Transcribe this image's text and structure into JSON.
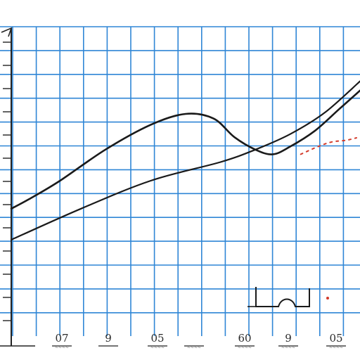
{
  "chart_data": {
    "type": "line",
    "title": "",
    "xlabel": "",
    "ylabel": "",
    "grid": true,
    "x_tick_labels": [
      {
        "label": "07",
        "sub": "~~~~"
      },
      {
        "label": "9",
        "sub": ""
      },
      {
        "label": "05",
        "sub": "~~~~"
      },
      {
        "label": "",
        "sub": "~~~~"
      },
      {
        "label": "60",
        "sub": "~~~~"
      },
      {
        "label": "9",
        "sub": "~~~~"
      },
      {
        "label": "05",
        "sub": "~~~~"
      }
    ],
    "series": [
      {
        "values": [
          [
            0,
            0.41
          ],
          [
            0.05,
            0.44
          ],
          [
            0.14,
            0.5
          ],
          [
            0.27,
            0.6
          ],
          [
            0.4,
            0.68
          ],
          [
            0.5,
            0.715
          ],
          [
            0.58,
            0.7
          ],
          [
            0.64,
            0.64
          ],
          [
            0.7,
            0.6
          ],
          [
            0.75,
            0.585
          ],
          [
            0.8,
            0.61
          ],
          [
            0.87,
            0.66
          ],
          [
            0.94,
            0.73
          ],
          [
            1.0,
            0.79
          ]
        ]
      },
      {
        "values": [
          [
            0,
            0.31
          ],
          [
            0.2,
            0.41
          ],
          [
            0.4,
            0.5
          ],
          [
            0.6,
            0.56
          ],
          [
            0.7,
            0.6
          ],
          [
            0.8,
            0.65
          ],
          [
            0.9,
            0.72
          ],
          [
            1.0,
            0.82
          ]
        ]
      },
      {
        "values": [
          [
            0.83,
            0.585
          ],
          [
            0.88,
            0.61
          ],
          [
            0.92,
            0.625
          ],
          [
            0.96,
            0.63
          ],
          [
            0.99,
            0.638
          ]
        ]
      }
    ],
    "colors": {
      "background": "#ffffff",
      "grid": "#2f86d6",
      "curve": "#1a1a1a",
      "line": "#1a1a1a",
      "dotted": "#d33a2a",
      "axis": "#222222"
    }
  }
}
